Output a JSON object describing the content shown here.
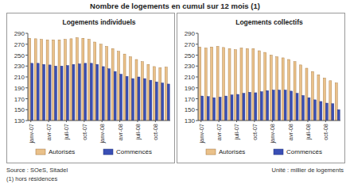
{
  "title": "Nombre de logements en cumul sur 12 mois (1)",
  "source": "Source : SOeS, Sitadel",
  "footnote": "(1) hors résidences",
  "unit": "Unité : millier de logements",
  "chart_data": [
    {
      "type": "bar",
      "title": "Logements individuels",
      "categories": [
        "janv-07",
        null,
        null,
        "avr-07",
        null,
        null,
        "juil-07",
        null,
        null,
        "oct-07",
        null,
        null,
        "janv-08",
        null,
        null,
        "avr-08",
        null,
        null,
        "juil-08",
        null,
        null,
        "oct-08",
        null,
        null
      ],
      "series": [
        {
          "name": "Autorisés",
          "color": "#eac18a",
          "values": [
            281,
            280,
            279,
            278,
            278,
            278,
            279,
            280,
            282,
            281,
            279,
            274,
            270,
            266,
            262,
            257,
            252,
            247,
            242,
            238,
            233,
            229,
            227,
            228
          ]
        },
        {
          "name": "Commencés",
          "color": "#3a4fb5",
          "values": [
            235,
            235,
            233,
            232,
            230,
            230,
            231,
            233,
            234,
            235,
            235,
            233,
            229,
            225,
            220,
            215,
            211,
            207,
            210,
            207,
            204,
            201,
            199,
            197
          ]
        }
      ],
      "ylim": [
        130,
        290
      ],
      "yticks": [
        130,
        150,
        170,
        190,
        210,
        230,
        250,
        270,
        290
      ],
      "grid": false,
      "legend": "bottom"
    },
    {
      "type": "bar",
      "title": "Logements collectifs",
      "categories": [
        "janv-07",
        null,
        null,
        "avr-07",
        null,
        null,
        "juil-07",
        null,
        null,
        "oct-07",
        null,
        null,
        "janv-08",
        null,
        null,
        "avr-08",
        null,
        null,
        "juil-08",
        null,
        null,
        "oct-08",
        null,
        null
      ],
      "series": [
        {
          "name": "Autorisés",
          "color": "#eac18a",
          "values": [
            265,
            263,
            265,
            266,
            264,
            262,
            260,
            263,
            262,
            262,
            258,
            255,
            250,
            247,
            245,
            242,
            238,
            232,
            226,
            220,
            214,
            208,
            203,
            199
          ]
        },
        {
          "name": "Commencés",
          "color": "#3a4fb5",
          "values": [
            175,
            174,
            172,
            173,
            175,
            177,
            178,
            180,
            182,
            181,
            183,
            185,
            186,
            186,
            186,
            184,
            180,
            176,
            172,
            168,
            165,
            162,
            161,
            150
          ]
        }
      ],
      "ylim": [
        130,
        290
      ],
      "yticks": [
        130,
        150,
        170,
        190,
        210,
        230,
        250,
        270,
        290
      ],
      "grid": false,
      "legend": "bottom"
    }
  ]
}
